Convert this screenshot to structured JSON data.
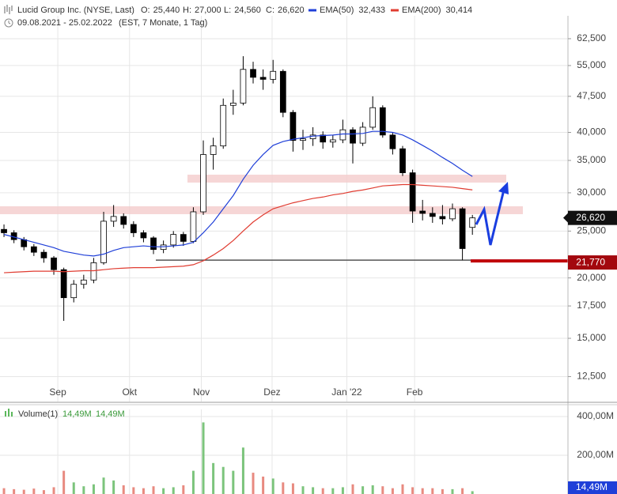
{
  "chart_data": {
    "type": "candlestick",
    "title": "Lucid Group Inc. (NYSE, Last)",
    "ohlc_header": [
      {
        "key": "O:",
        "text": "25,440"
      },
      {
        "key": "H:",
        "text": "27,000"
      },
      {
        "key": "L:",
        "text": "24,560"
      },
      {
        "key": "C:",
        "text": "26,620"
      }
    ],
    "date_range": "09.08.2021 - 25.02.2022",
    "note": "(EST, 7 Monate, 1 Tag)",
    "ohlc": {
      "open": [
        25200,
        24800,
        24000,
        23200,
        22600,
        22000,
        20800,
        18200,
        19400,
        19800,
        21500,
        26200,
        26800,
        25800,
        24800,
        24200,
        22900,
        23400,
        24600,
        23800,
        27400,
        36000,
        37500,
        45500,
        46000,
        54000,
        52000,
        51500,
        53500,
        44000,
        38500,
        38800,
        39500,
        38200,
        38600,
        40500,
        38000,
        41000,
        45000,
        39500,
        37000,
        33000,
        27500,
        27200,
        26800,
        26500,
        27800,
        25440
      ],
      "high": [
        25800,
        25100,
        24300,
        23500,
        22900,
        22200,
        21000,
        19800,
        20300,
        22000,
        27400,
        28300,
        27200,
        26200,
        25100,
        24400,
        23900,
        25000,
        24900,
        28000,
        38500,
        39000,
        47000,
        49000,
        57500,
        56000,
        54000,
        56500,
        54000,
        44500,
        40500,
        41000,
        40200,
        39500,
        42500,
        41000,
        42000,
        47500,
        45500,
        40000,
        37500,
        33500,
        29000,
        28000,
        28300,
        28500,
        28000,
        27000
      ],
      "low": [
        24300,
        23600,
        22800,
        22200,
        21500,
        20300,
        16300,
        17800,
        19000,
        19500,
        21300,
        25500,
        25300,
        24300,
        23700,
        22400,
        22500,
        23100,
        23300,
        23600,
        27000,
        33500,
        37000,
        43500,
        45500,
        50500,
        49000,
        50500,
        43000,
        36500,
        36800,
        37500,
        37000,
        37200,
        38000,
        34500,
        37500,
        40500,
        39000,
        36000,
        32500,
        26000,
        26300,
        26000,
        25800,
        26200,
        21770,
        24560
      ],
      "close": [
        24800,
        24000,
        23200,
        22600,
        22000,
        20800,
        18200,
        19400,
        19800,
        21500,
        26200,
        26800,
        25800,
        24800,
        24200,
        22900,
        23400,
        24600,
        23800,
        27400,
        36000,
        37500,
        45500,
        46000,
        54000,
        52000,
        51500,
        53500,
        44000,
        38500,
        38800,
        39500,
        38200,
        38600,
        40500,
        38000,
        41000,
        45000,
        39500,
        37000,
        33000,
        27500,
        27200,
        26800,
        26500,
        27800,
        23000,
        26620
      ]
    },
    "up_color": "#ffffff",
    "down_color": "#000000",
    "series": [
      {
        "name": "EMA(50)",
        "color": "#1f3fd8",
        "last_label": "32,433",
        "values": [
          24600,
          24300,
          24000,
          23700,
          23400,
          23100,
          22700,
          22500,
          22300,
          22200,
          22400,
          22800,
          23100,
          23200,
          23300,
          23200,
          23200,
          23300,
          23400,
          23700,
          24800,
          26100,
          27800,
          29600,
          32000,
          34200,
          36000,
          37600,
          38300,
          38700,
          39000,
          39300,
          39400,
          39500,
          39700,
          39700,
          39800,
          40200,
          40200,
          40000,
          39500,
          38600,
          37600,
          36600,
          35500,
          34500,
          33400,
          32433
        ]
      },
      {
        "name": "EMA(200)",
        "color": "#e03c31",
        "last_label": "30,414",
        "values": [
          20500,
          20550,
          20600,
          20650,
          20650,
          20650,
          20600,
          20650,
          20700,
          20700,
          20800,
          20900,
          20950,
          21000,
          21000,
          21000,
          21050,
          21100,
          21150,
          21300,
          21700,
          22300,
          23000,
          23900,
          25000,
          26100,
          27000,
          27800,
          28200,
          28600,
          28900,
          29200,
          29400,
          29700,
          29900,
          30200,
          30400,
          30700,
          31000,
          31100,
          31200,
          31200,
          31100,
          31000,
          30900,
          30800,
          30600,
          30414
        ]
      }
    ],
    "xlim": [
      -0.4,
      56.35
    ],
    "xticks": [
      {
        "value": 5.4,
        "label": "Sep"
      },
      {
        "value": 12.6,
        "label": "Okt"
      },
      {
        "value": 19.8,
        "label": "Nov"
      },
      {
        "value": 26.9,
        "label": "Dez"
      },
      {
        "value": 34.4,
        "label": "Jan '22"
      },
      {
        "value": 41.2,
        "label": "Feb"
      }
    ],
    "ylim": [
      11100,
      69700
    ],
    "log_scale": true,
    "grid": true,
    "yticks": [
      {
        "value": 12500,
        "label": "12,500"
      },
      {
        "value": 15000,
        "label": "15,000"
      },
      {
        "value": 17500,
        "label": "17,500"
      },
      {
        "value": 20000,
        "label": "20,000"
      },
      {
        "value": 25000,
        "label": "25,000"
      },
      {
        "value": 30000,
        "label": "30,000"
      },
      {
        "value": 35000,
        "label": "35,000"
      },
      {
        "value": 40000,
        "label": "40,000"
      },
      {
        "value": 47500,
        "label": "47,500"
      },
      {
        "value": 55000,
        "label": "55,000"
      },
      {
        "value": 62500,
        "label": "62,500"
      }
    ],
    "last_price": {
      "value": 26620,
      "label": "26,620"
    },
    "support": {
      "value": 21770,
      "label": "21,770"
    },
    "volume": {
      "name": "Volume(1)",
      "legend_values": [
        "14,49M",
        "14,49M"
      ],
      "up_color": "#7cc47c",
      "down_color": "#e88a80",
      "values": [
        30,
        25,
        22,
        28,
        20,
        35,
        120,
        60,
        40,
        50,
        85,
        70,
        45,
        35,
        30,
        40,
        30,
        35,
        45,
        120,
        370,
        160,
        140,
        120,
        240,
        110,
        90,
        80,
        60,
        55,
        40,
        35,
        30,
        30,
        35,
        50,
        40,
        45,
        40,
        30,
        50,
        35,
        30,
        30,
        25,
        25,
        30,
        14.49
      ],
      "last_label": "14,49M",
      "ylim": [
        0,
        437
      ],
      "yticks": [
        {
          "value": 200,
          "label": "200,00M"
        },
        {
          "value": 400,
          "label": "400,00M"
        }
      ]
    }
  }
}
